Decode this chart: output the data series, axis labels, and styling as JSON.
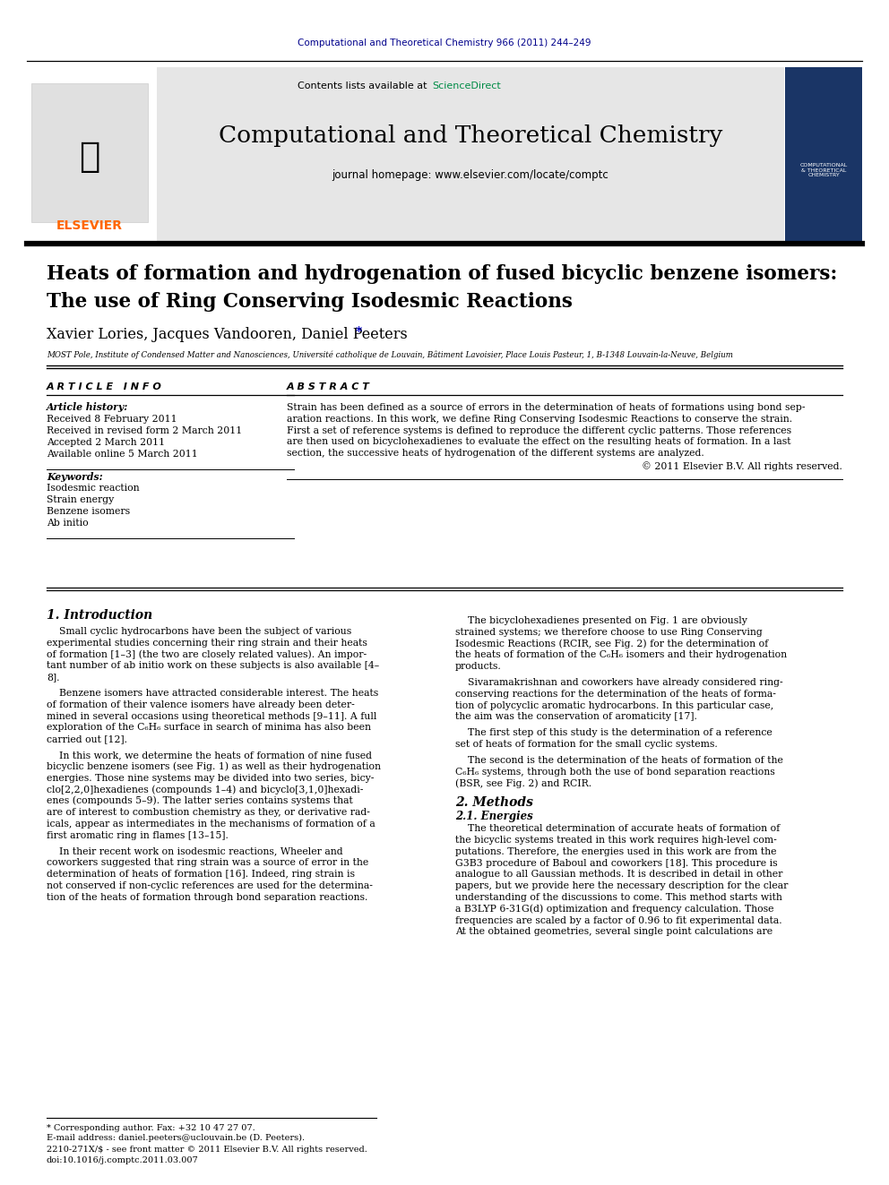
{
  "journal_ref": "Computational and Theoretical Chemistry 966 (2011) 244–249",
  "journal_ref_color": "#00008B",
  "sciencedirect_color": "#00A86B",
  "journal_name": "Computational and Theoretical Chemistry",
  "journal_homepage": "journal homepage: www.elsevier.com/locate/comptc",
  "header_bg": "#E6E6E6",
  "title_line1": "Heats of formation and hydrogenation of fused bicyclic benzene isomers:",
  "title_line2": "The use of Ring Conserving Isodesmic Reactions",
  "authors": "Xavier Lories, Jacques Vandooren, Daniel Peeters",
  "authors_asterisk": "*",
  "affiliation": "MOST Pole, Institute of Condensed Matter and Nanosciences, Université catholique de Louvain, Bâtiment Lavoisier, Place Louis Pasteur, 1, B-1348 Louvain-la-Neuve, Belgium",
  "article_history_label": "Article history:",
  "received": "Received 8 February 2011",
  "received_revised": "Received in revised form 2 March 2011",
  "accepted": "Accepted 2 March 2011",
  "available": "Available online 5 March 2011",
  "keywords_label": "Keywords:",
  "keywords": [
    "Isodesmic reaction",
    "Strain energy",
    "Benzene isomers",
    "Ab initio"
  ],
  "abstract_text_lines": [
    "Strain has been defined as a source of errors in the determination of heats of formations using bond sep-",
    "aration reactions. In this work, we define Ring Conserving Isodesmic Reactions to conserve the strain.",
    "First a set of reference systems is defined to reproduce the different cyclic patterns. Those references",
    "are then used on bicyclohexadienes to evaluate the effect on the resulting heats of formation. In a last",
    "section, the successive heats of hydrogenation of the different systems are analyzed."
  ],
  "copyright": "© 2011 Elsevier B.V. All rights reserved.",
  "section1_title": "1. Introduction",
  "section2_title": "2. Methods",
  "section2_sub": "2.1. Energies",
  "footnote_line1": "* Corresponding author. Fax: +32 10 47 27 07.",
  "footnote_line2": "E-mail address: daniel.peeters@uclouvain.be (D. Peeters).",
  "footnote_line3": "2210-271X/$ - see front matter © 2011 Elsevier B.V. All rights reserved.",
  "footnote_line4": "doi:10.1016/j.comptc.2011.03.007",
  "bg_color": "#FFFFFF",
  "text_color": "#000000",
  "link_color": "#0000CD",
  "col1_left_paragraphs": [
    [
      "    Small cyclic hydrocarbons have been the subject of various",
      "experimental studies concerning their ring strain and their heats",
      "of formation [1–3] (the two are closely related values). An impor-",
      "tant number of ab initio work on these subjects is also available [4–",
      "8]."
    ],
    [
      "    Benzene isomers have attracted considerable interest. The heats",
      "of formation of their valence isomers have already been deter-",
      "mined in several occasions using theoretical methods [9–11]. A full",
      "exploration of the C₆H₆ surface in search of minima has also been",
      "carried out [12]."
    ],
    [
      "    In this work, we determine the heats of formation of nine fused",
      "bicyclic benzene isomers (see Fig. 1) as well as their hydrogenation",
      "energies. Those nine systems may be divided into two series, bicy-",
      "clo[2,2,0]hexadienes (compounds 1–4) and bicyclo[3,1,0]hexadi-",
      "enes (compounds 5–9). The latter series contains systems that",
      "are of interest to combustion chemistry as they, or derivative rad-",
      "icals, appear as intermediates in the mechanisms of formation of a",
      "first aromatic ring in flames [13–15]."
    ],
    [
      "    In their recent work on isodesmic reactions, Wheeler and",
      "coworkers suggested that ring strain was a source of error in the",
      "determination of heats of formation [16]. Indeed, ring strain is",
      "not conserved if non-cyclic references are used for the determina-",
      "tion of the heats of formation through bond separation reactions."
    ]
  ],
  "col2_right_paragraphs": [
    [
      "    The bicyclohexadienes presented on Fig. 1 are obviously",
      "strained systems; we therefore choose to use Ring Conserving",
      "Isodesmic Reactions (RCIR, see Fig. 2) for the determination of",
      "the heats of formation of the C₆H₆ isomers and their hydrogenation",
      "products."
    ],
    [
      "    Sivaramakrishnan and coworkers have already considered ring-",
      "conserving reactions for the determination of the heats of forma-",
      "tion of polycyclic aromatic hydrocarbons. In this particular case,",
      "the aim was the conservation of aromaticity [17]."
    ],
    [
      "    The first step of this study is the determination of a reference",
      "set of heats of formation for the small cyclic systems."
    ],
    [
      "    The second is the determination of the heats of formation of the",
      "C₆H₆ systems, through both the use of bond separation reactions",
      "(BSR, see Fig. 2) and RCIR."
    ]
  ],
  "methods_lines": [
    "    The theoretical determination of accurate heats of formation of",
    "the bicyclic systems treated in this work requires high-level com-",
    "putations. Therefore, the energies used in this work are from the",
    "G3B3 procedure of Baboul and coworkers [18]. This procedure is",
    "analogue to all Gaussian methods. It is described in detail in other",
    "papers, but we provide here the necessary description for the clear",
    "understanding of the discussions to come. This method starts with",
    "a B3LYP 6-31G(d) optimization and frequency calculation. Those",
    "frequencies are scaled by a factor of 0.96 to fit experimental data.",
    "At the obtained geometries, several single point calculations are"
  ]
}
